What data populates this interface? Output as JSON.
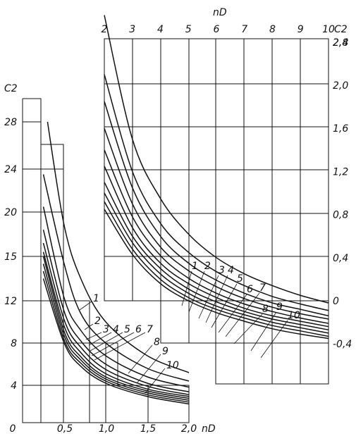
{
  "chart_data": [
    {
      "type": "line",
      "panel": "left",
      "xlabel": "nD",
      "ylabel": "C2",
      "x_ticks": [
        "0",
        "0,5",
        "1,0",
        "1,5",
        "2,0"
      ],
      "y_ticks": [
        "4",
        "8",
        "12",
        "15",
        "20",
        "24",
        "28"
      ],
      "series_labels": [
        "1",
        "2",
        "3",
        "4",
        "5",
        "6",
        "7",
        "8",
        "9",
        "10"
      ],
      "series": [
        {
          "name": "1",
          "points": [
            [
              0.3,
              28.0
            ],
            [
              0.5,
              18.5
            ],
            [
              0.7,
              13.5
            ],
            [
              1.0,
              10.0
            ],
            [
              1.5,
              6.8
            ],
            [
              2.0,
              5.2
            ]
          ]
        },
        {
          "name": "2",
          "points": [
            [
              0.25,
              23.5
            ],
            [
              0.5,
              14.5
            ],
            [
              0.7,
              10.8
            ],
            [
              1.0,
              8.0
            ],
            [
              1.5,
              5.6
            ],
            [
              2.0,
              4.4
            ]
          ]
        },
        {
          "name": "3",
          "points": [
            [
              0.25,
              20.5
            ],
            [
              0.5,
              12.2
            ],
            [
              0.7,
              9.2
            ],
            [
              1.0,
              6.8
            ],
            [
              1.5,
              4.8
            ],
            [
              2.0,
              3.8
            ]
          ]
        },
        {
          "name": "4",
          "points": [
            [
              0.25,
              18.0
            ],
            [
              0.5,
              11.0
            ],
            [
              0.7,
              8.2
            ],
            [
              1.0,
              6.0
            ],
            [
              1.5,
              4.2
            ],
            [
              2.0,
              3.3
            ]
          ]
        },
        {
          "name": "5",
          "points": [
            [
              0.25,
              16.5
            ],
            [
              0.5,
              10.2
            ],
            [
              0.7,
              7.6
            ],
            [
              1.0,
              5.5
            ],
            [
              1.5,
              3.9
            ],
            [
              2.0,
              3.0
            ]
          ]
        },
        {
          "name": "6",
          "points": [
            [
              0.25,
              15.5
            ],
            [
              0.5,
              9.6
            ],
            [
              0.7,
              7.1
            ],
            [
              1.0,
              5.1
            ],
            [
              1.5,
              3.6
            ],
            [
              2.0,
              2.8
            ]
          ]
        },
        {
          "name": "7",
          "points": [
            [
              0.25,
              15.0
            ],
            [
              0.5,
              9.1
            ],
            [
              0.7,
              6.7
            ],
            [
              1.0,
              4.8
            ],
            [
              1.5,
              3.4
            ],
            [
              2.0,
              2.6
            ]
          ]
        },
        {
          "name": "8",
          "points": [
            [
              0.25,
              14.5
            ],
            [
              0.5,
              8.7
            ],
            [
              0.7,
              6.4
            ],
            [
              1.0,
              4.6
            ],
            [
              1.5,
              3.2
            ],
            [
              2.0,
              2.4
            ]
          ]
        },
        {
          "name": "9",
          "points": [
            [
              0.25,
              14.0
            ],
            [
              0.5,
              8.3
            ],
            [
              0.7,
              6.1
            ],
            [
              1.0,
              4.4
            ],
            [
              1.5,
              3.0
            ],
            [
              2.0,
              2.2
            ]
          ]
        },
        {
          "name": "10",
          "points": [
            [
              0.25,
              13.5
            ],
            [
              0.5,
              8.0
            ],
            [
              0.7,
              5.8
            ],
            [
              1.0,
              4.2
            ],
            [
              1.5,
              2.8
            ],
            [
              2.0,
              2.0
            ]
          ]
        }
      ]
    },
    {
      "type": "line",
      "panel": "right",
      "xlabel": "nD",
      "ylabel": "C2",
      "x_ticks": [
        "2",
        "3",
        "4",
        "5",
        "6",
        "7",
        "8",
        "9",
        "10"
      ],
      "y_ticks": [
        "-0,4",
        "0",
        "0,4",
        "0,8",
        "1,2",
        "1,6",
        "2,0",
        "2,4",
        "2,8"
      ],
      "series_labels": [
        "1",
        "2",
        "3",
        "4",
        "5",
        "6",
        "7",
        "8",
        "9",
        "10"
      ],
      "series": [
        {
          "name": "1",
          "points": [
            [
              2.0,
              2.65
            ],
            [
              3.0,
              1.5
            ],
            [
              4.0,
              0.95
            ],
            [
              5.0,
              0.62
            ],
            [
              6.0,
              0.4
            ],
            [
              7.0,
              0.25
            ],
            [
              8.0,
              0.14
            ],
            [
              9.0,
              0.05
            ],
            [
              10.0,
              -0.02
            ]
          ]
        },
        {
          "name": "2",
          "points": [
            [
              2.0,
              2.1
            ],
            [
              3.0,
              1.2
            ],
            [
              4.0,
              0.72
            ],
            [
              5.0,
              0.45
            ],
            [
              6.0,
              0.27
            ],
            [
              7.0,
              0.14
            ],
            [
              8.0,
              0.04
            ],
            [
              9.0,
              -0.03
            ],
            [
              10.0,
              -0.09
            ]
          ]
        },
        {
          "name": "3",
          "points": [
            [
              2.0,
              1.85
            ],
            [
              3.0,
              1.05
            ],
            [
              4.0,
              0.6
            ],
            [
              5.0,
              0.35
            ],
            [
              6.0,
              0.19
            ],
            [
              7.0,
              0.07
            ],
            [
              8.0,
              -0.02
            ],
            [
              9.0,
              -0.08
            ],
            [
              10.0,
              -0.14
            ]
          ]
        },
        {
          "name": "4",
          "points": [
            [
              2.0,
              1.6
            ],
            [
              3.0,
              0.9
            ],
            [
              4.0,
              0.5
            ],
            [
              5.0,
              0.28
            ],
            [
              6.0,
              0.13
            ],
            [
              7.0,
              0.02
            ],
            [
              8.0,
              -0.06
            ],
            [
              9.0,
              -0.12
            ],
            [
              10.0,
              -0.17
            ]
          ]
        },
        {
          "name": "5",
          "points": [
            [
              2.0,
              1.4
            ],
            [
              3.0,
              0.78
            ],
            [
              4.0,
              0.42
            ],
            [
              5.0,
              0.21
            ],
            [
              6.0,
              0.07
            ],
            [
              7.0,
              -0.03
            ],
            [
              8.0,
              -0.1
            ],
            [
              9.0,
              -0.16
            ],
            [
              10.0,
              -0.21
            ]
          ]
        },
        {
          "name": "6",
          "points": [
            [
              2.0,
              1.25
            ],
            [
              3.0,
              0.68
            ],
            [
              4.0,
              0.35
            ],
            [
              5.0,
              0.16
            ],
            [
              6.0,
              0.03
            ],
            [
              7.0,
              -0.07
            ],
            [
              8.0,
              -0.14
            ],
            [
              9.0,
              -0.19
            ],
            [
              10.0,
              -0.24
            ]
          ]
        },
        {
          "name": "7",
          "points": [
            [
              2.0,
              1.1
            ],
            [
              3.0,
              0.6
            ],
            [
              4.0,
              0.3
            ],
            [
              5.0,
              0.11
            ],
            [
              6.0,
              -0.01
            ],
            [
              7.0,
              -0.1
            ],
            [
              8.0,
              -0.17
            ],
            [
              9.0,
              -0.22
            ],
            [
              10.0,
              -0.27
            ]
          ]
        },
        {
          "name": "8",
          "points": [
            [
              2.0,
              1.0
            ],
            [
              3.0,
              0.54
            ],
            [
              4.0,
              0.25
            ],
            [
              5.0,
              0.07
            ],
            [
              6.0,
              -0.05
            ],
            [
              7.0,
              -0.13
            ],
            [
              8.0,
              -0.2
            ],
            [
              9.0,
              -0.25
            ],
            [
              10.0,
              -0.3
            ]
          ]
        },
        {
          "name": "9",
          "points": [
            [
              2.0,
              0.92
            ],
            [
              3.0,
              0.48
            ],
            [
              4.0,
              0.2
            ],
            [
              5.0,
              0.03
            ],
            [
              6.0,
              -0.08
            ],
            [
              7.0,
              -0.16
            ],
            [
              8.0,
              -0.23
            ],
            [
              9.0,
              -0.28
            ],
            [
              10.0,
              -0.33
            ]
          ]
        },
        {
          "name": "10",
          "points": [
            [
              2.0,
              0.85
            ],
            [
              3.0,
              0.43
            ],
            [
              4.0,
              0.16
            ],
            [
              5.0,
              0.0
            ],
            [
              6.0,
              -0.11
            ],
            [
              7.0,
              -0.19
            ],
            [
              8.0,
              -0.26
            ],
            [
              9.0,
              -0.31
            ],
            [
              10.0,
              -0.35
            ]
          ]
        }
      ]
    }
  ]
}
